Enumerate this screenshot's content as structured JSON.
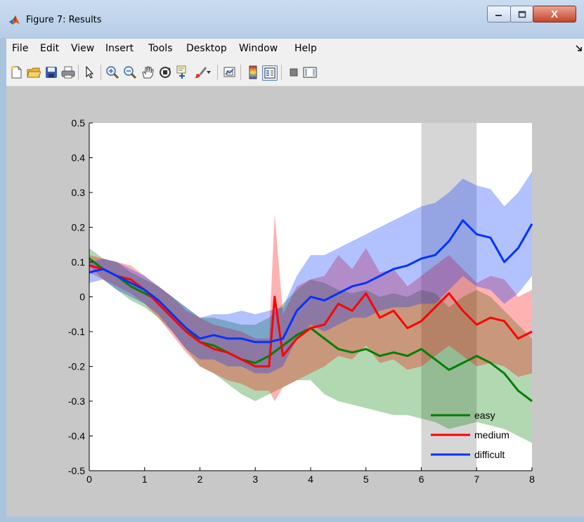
{
  "window": {
    "title": "Figure 7: Results",
    "close_glyph": "X"
  },
  "menu": [
    "File",
    "Edit",
    "View",
    "Insert",
    "Tools",
    "Desktop",
    "Window",
    "Help"
  ],
  "toolbar_icons": [
    "new-figure-icon",
    "open-file-icon",
    "save-icon",
    "print-icon",
    "select-arrow-icon",
    "zoom-in-icon",
    "zoom-out-icon",
    "pan-hand-icon",
    "rotate-3d-icon",
    "data-cursor-icon",
    "brush-icon",
    "brush-dropdown-icon",
    "link-plot-icon",
    "colorbar-icon",
    "legend-icon",
    "hide-plot-tools-icon",
    "show-plot-tools-icon"
  ],
  "colors": {
    "easy": "#007f00",
    "medium": "#ff0000",
    "difficult": "#0033ff",
    "highlight": "#d6d6d6",
    "figure_bg": "#c8c8c8"
  },
  "chart_data": {
    "type": "line",
    "xlim": [
      0,
      8
    ],
    "ylim": [
      -0.5,
      0.5
    ],
    "xticks": [
      0,
      1,
      2,
      3,
      4,
      5,
      6,
      7,
      8
    ],
    "yticks": [
      0.5,
      0.4,
      0.3,
      0.2,
      0.1,
      0,
      -0.1,
      -0.2,
      -0.3,
      -0.4,
      -0.5
    ],
    "ytick_labels": [
      "0.5",
      "0.4",
      "0.3",
      "0.2",
      "0.1",
      "0",
      "-0.1",
      "-0.2",
      "-0.3",
      "-0.4",
      "-0.5"
    ],
    "xtick_labels": [
      "0",
      "1",
      "2",
      "3",
      "4",
      "5",
      "6",
      "7",
      "8"
    ],
    "highlight_span": [
      6.0,
      7.0
    ],
    "legend_position": "lower-right",
    "series": [
      {
        "name": "easy",
        "x": [
          0,
          0.25,
          0.5,
          0.75,
          1.0,
          1.25,
          1.5,
          1.75,
          2.0,
          2.25,
          2.5,
          2.75,
          3.0,
          3.25,
          3.5,
          3.75,
          4.0,
          4.25,
          4.5,
          4.75,
          5.0,
          5.25,
          5.5,
          5.75,
          6.0,
          6.25,
          6.5,
          6.75,
          7.0,
          7.25,
          7.5,
          7.75,
          8.0
        ],
        "y": [
          0.11,
          0.08,
          0.06,
          0.03,
          0.01,
          -0.01,
          -0.05,
          -0.09,
          -0.13,
          -0.14,
          -0.16,
          -0.18,
          -0.19,
          -0.17,
          -0.14,
          -0.11,
          -0.09,
          -0.12,
          -0.15,
          -0.16,
          -0.15,
          -0.17,
          -0.16,
          -0.17,
          -0.15,
          -0.18,
          -0.21,
          -0.19,
          -0.17,
          -0.19,
          -0.22,
          -0.27,
          -0.3
        ],
        "lower": [
          0.09,
          0.05,
          0.02,
          -0.01,
          -0.03,
          -0.06,
          -0.1,
          -0.15,
          -0.2,
          -0.22,
          -0.25,
          -0.28,
          -0.3,
          -0.28,
          -0.26,
          -0.24,
          -0.24,
          -0.28,
          -0.3,
          -0.31,
          -0.32,
          -0.33,
          -0.34,
          -0.34,
          -0.35,
          -0.36,
          -0.38,
          -0.37,
          -0.36,
          -0.37,
          -0.38,
          -0.4,
          -0.42
        ],
        "upper": [
          0.14,
          0.11,
          0.1,
          0.07,
          0.05,
          0.03,
          0.0,
          -0.03,
          -0.06,
          -0.06,
          -0.07,
          -0.08,
          -0.08,
          -0.06,
          -0.02,
          0.02,
          0.05,
          0.04,
          0.02,
          0.01,
          0.02,
          0.0,
          0.01,
          0.0,
          0.02,
          0.01,
          -0.03,
          0.0,
          0.02,
          0.0,
          -0.04,
          -0.08,
          -0.12
        ]
      },
      {
        "name": "medium",
        "x": [
          0,
          0.25,
          0.5,
          0.75,
          1.0,
          1.25,
          1.5,
          1.75,
          2.0,
          2.25,
          2.5,
          2.75,
          3.0,
          3.25,
          3.35,
          3.5,
          3.75,
          4.0,
          4.25,
          4.5,
          4.75,
          5.0,
          5.25,
          5.5,
          5.75,
          6.0,
          6.25,
          6.5,
          6.75,
          7.0,
          7.25,
          7.5,
          7.75,
          8.0
        ],
        "y": [
          0.09,
          0.08,
          0.06,
          0.05,
          0.02,
          -0.02,
          -0.06,
          -0.1,
          -0.13,
          -0.15,
          -0.16,
          -0.18,
          -0.2,
          -0.2,
          0.0,
          -0.17,
          -0.12,
          -0.09,
          -0.08,
          -0.02,
          -0.04,
          0.01,
          -0.06,
          -0.04,
          -0.09,
          -0.07,
          -0.03,
          0.01,
          -0.04,
          -0.08,
          -0.06,
          -0.07,
          -0.12,
          -0.1
        ],
        "lower": [
          0.07,
          0.05,
          0.03,
          0.01,
          -0.02,
          -0.06,
          -0.11,
          -0.16,
          -0.2,
          -0.22,
          -0.24,
          -0.25,
          -0.27,
          -0.27,
          -0.3,
          -0.26,
          -0.24,
          -0.22,
          -0.2,
          -0.17,
          -0.18,
          -0.14,
          -0.19,
          -0.18,
          -0.21,
          -0.2,
          -0.17,
          -0.14,
          -0.17,
          -0.2,
          -0.19,
          -0.2,
          -0.23,
          -0.22
        ],
        "upper": [
          0.12,
          0.11,
          0.1,
          0.09,
          0.06,
          0.03,
          0.0,
          -0.04,
          -0.06,
          -0.08,
          -0.09,
          -0.1,
          -0.12,
          -0.12,
          0.24,
          -0.05,
          0.03,
          0.05,
          0.06,
          0.12,
          0.08,
          0.14,
          0.07,
          0.08,
          0.03,
          0.06,
          0.09,
          0.12,
          0.08,
          0.04,
          0.06,
          0.05,
          0.0,
          0.02
        ]
      },
      {
        "name": "difficult",
        "x": [
          0,
          0.25,
          0.5,
          0.75,
          1.0,
          1.25,
          1.5,
          1.75,
          2.0,
          2.25,
          2.5,
          2.75,
          3.0,
          3.25,
          3.5,
          3.75,
          4.0,
          4.25,
          4.5,
          4.75,
          5.0,
          5.25,
          5.5,
          5.75,
          6.0,
          6.25,
          6.5,
          6.75,
          7.0,
          7.25,
          7.5,
          7.75,
          8.0
        ],
        "y": [
          0.07,
          0.08,
          0.06,
          0.04,
          0.02,
          -0.01,
          -0.05,
          -0.09,
          -0.12,
          -0.11,
          -0.12,
          -0.12,
          -0.13,
          -0.13,
          -0.12,
          -0.04,
          0.0,
          -0.01,
          0.01,
          0.03,
          0.04,
          0.06,
          0.08,
          0.09,
          0.11,
          0.12,
          0.16,
          0.22,
          0.18,
          0.17,
          0.1,
          0.14,
          0.21
        ],
        "lower": [
          0.04,
          0.05,
          0.02,
          0.0,
          -0.02,
          -0.05,
          -0.1,
          -0.15,
          -0.18,
          -0.18,
          -0.2,
          -0.2,
          -0.22,
          -0.22,
          -0.2,
          -0.12,
          -0.08,
          -0.1,
          -0.08,
          -0.06,
          -0.06,
          -0.04,
          -0.03,
          -0.03,
          -0.02,
          -0.02,
          0.02,
          0.06,
          0.03,
          0.02,
          -0.02,
          0.01,
          0.06
        ],
        "upper": [
          0.1,
          0.11,
          0.1,
          0.08,
          0.06,
          0.03,
          0.0,
          -0.03,
          -0.06,
          -0.05,
          -0.05,
          -0.04,
          -0.05,
          -0.04,
          -0.03,
          0.06,
          0.12,
          0.12,
          0.14,
          0.16,
          0.18,
          0.2,
          0.22,
          0.24,
          0.26,
          0.27,
          0.3,
          0.34,
          0.32,
          0.31,
          0.26,
          0.3,
          0.36
        ]
      }
    ]
  }
}
